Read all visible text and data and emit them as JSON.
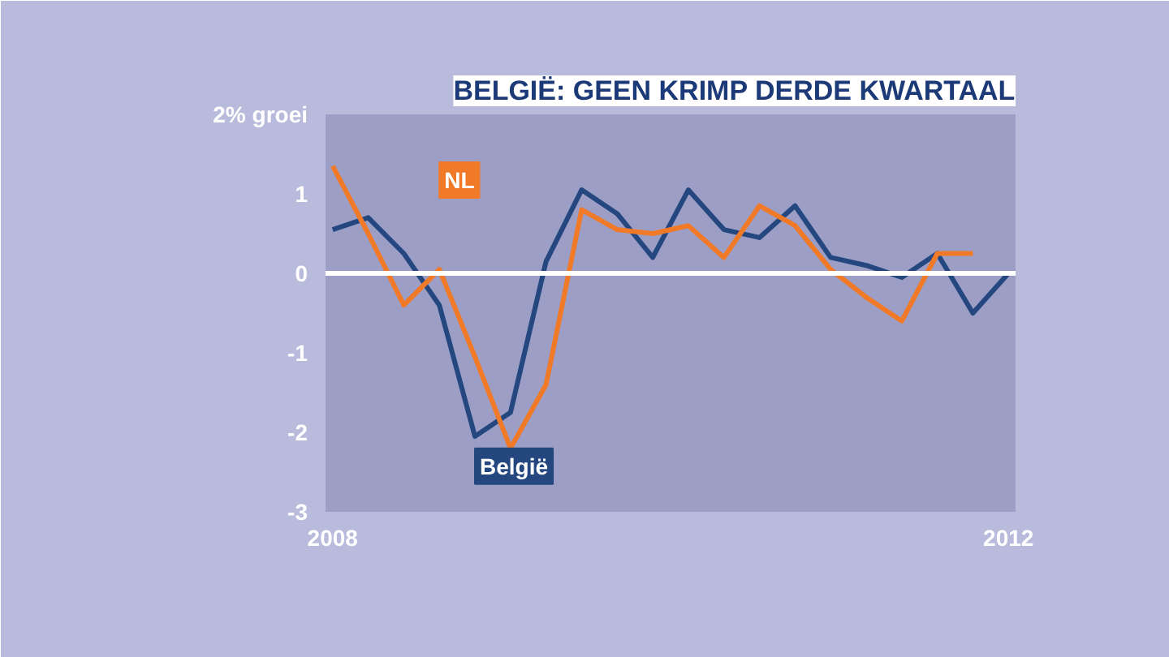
{
  "chart_data": {
    "type": "line",
    "title": "BELGIË: GEEN KRIMP DERDE KWARTAAL",
    "categories": [
      "2008",
      null,
      null,
      null,
      null,
      null,
      null,
      null,
      null,
      null,
      null,
      null,
      null,
      null,
      null,
      null,
      null,
      null,
      null,
      "2012"
    ],
    "ylim": [
      -3,
      2
    ],
    "yticks": [
      {
        "value": 2,
        "label": "2% groei"
      },
      1,
      0,
      -1,
      -2,
      -3
    ],
    "series": [
      {
        "name": "België",
        "color": "#24477f",
        "values": [
          0.55,
          0.7,
          0.25,
          -0.4,
          -2.05,
          -1.75,
          0.15,
          1.05,
          0.75,
          0.2,
          1.05,
          0.55,
          0.45,
          0.85,
          0.2,
          0.1,
          -0.05,
          0.25,
          -0.5,
          0
        ]
      },
      {
        "name": "NL",
        "color": "#f07a28",
        "values": [
          1.35,
          0.5,
          -0.4,
          0.05,
          -1.05,
          -2.2,
          -1.4,
          0.8,
          0.55,
          0.5,
          0.6,
          0.2,
          0.85,
          0.6,
          0.05,
          -0.3,
          -0.6,
          0.25,
          0.25,
          null
        ]
      }
    ],
    "ref_lines": [
      {
        "axis": "y",
        "value": 0,
        "color": "#ffffff"
      }
    ],
    "grid": false,
    "line_style": "solid",
    "marker": "none"
  }
}
